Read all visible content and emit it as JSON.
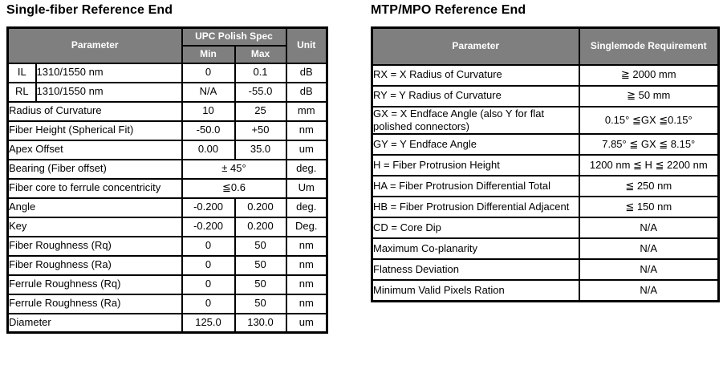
{
  "left_table": {
    "title": "Single-fiber Reference End",
    "header": {
      "parameter": "Parameter",
      "group": "UPC Polish Spec",
      "min": "Min",
      "max": "Max",
      "unit": "Unit"
    },
    "rows": [
      {
        "code": "IL",
        "param": "1310/1550 nm",
        "min": "0",
        "max": "0.1",
        "unit": "dB"
      },
      {
        "code": "RL",
        "param": "1310/1550 nm",
        "min": "N/A",
        "max": "-55.0",
        "unit": "dB"
      },
      {
        "param": "Radius of Curvature",
        "min": "10",
        "max": "25",
        "unit": "mm"
      },
      {
        "param": "Fiber Height (Spherical Fit)",
        "min": "-50.0",
        "max": "+50",
        "unit": "nm"
      },
      {
        "param": "Apex Offset",
        "min": "0.00",
        "max": "35.0",
        "unit": "um"
      },
      {
        "param": "Bearing (Fiber offset)",
        "span": "± 45°",
        "unit": "deg."
      },
      {
        "param": "Fiber core to ferrule concentricity",
        "span": "≦0.6",
        "unit": "Um"
      },
      {
        "param": "Angle",
        "min": "-0.200",
        "max": "0.200",
        "unit": "deg."
      },
      {
        "param": "Key",
        "min": "-0.200",
        "max": "0.200",
        "unit": "Deg."
      },
      {
        "param": "Fiber Roughness (Rq)",
        "min": "0",
        "max": "50",
        "unit": "nm"
      },
      {
        "param": "Fiber Roughness (Ra)",
        "min": "0",
        "max": "50",
        "unit": "nm"
      },
      {
        "param": "Ferrule Roughness (Rq)",
        "min": "0",
        "max": "50",
        "unit": "nm"
      },
      {
        "param": "Ferrule Roughness (Ra)",
        "min": "0",
        "max": "50",
        "unit": "nm"
      },
      {
        "param": "Diameter",
        "min": "125.0",
        "max": "130.0",
        "unit": "um"
      }
    ]
  },
  "right_table": {
    "title": "MTP/MPO Reference End",
    "header": {
      "parameter": "Parameter",
      "requirement": "Singlemode Requirement"
    },
    "rows": [
      {
        "param": "RX = X Radius of Curvature",
        "req": "≧ 2000 mm"
      },
      {
        "param": "RY = Y Radius of Curvature",
        "req": "≧ 50 mm"
      },
      {
        "param": "GX = X Endface Angle (also Y for flat polished connectors)",
        "req": "0.15° ≦GX ≦0.15°"
      },
      {
        "param": "GY = Y Endface Angle",
        "req": "7.85° ≦ GX ≦ 8.15°"
      },
      {
        "param": "H = Fiber Protrusion Height",
        "req": "1200 nm ≦ H ≦ 2200 nm"
      },
      {
        "param": "HA = Fiber Protrusion Differential Total",
        "req": "≦ 250 nm"
      },
      {
        "param": "HB = Fiber Protrusion Differential Adjacent",
        "req": "≦ 150 nm"
      },
      {
        "param": "CD = Core Dip",
        "req": "N/A"
      },
      {
        "param": "Maximum Co-planarity",
        "req": "N/A"
      },
      {
        "param": "Flatness Deviation",
        "req": "N/A"
      },
      {
        "param": "Minimum Valid Pixels Ration",
        "req": "N/A"
      }
    ]
  },
  "colors": {
    "header_bg": "#7f7f7f",
    "header_text": "#ffffff",
    "border": "#000000",
    "header_separator": "#f2f2f2",
    "page_bg": "#ffffff"
  }
}
